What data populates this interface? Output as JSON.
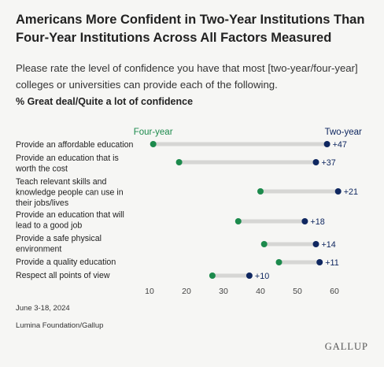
{
  "title": "Americans More Confident in Two-Year Institutions Than Four-Year Institutions Across All Factors Measured",
  "subtitle": "Please rate the level of confidence you have that most [two-year/four-year] colleges or universities can provide each of the following.",
  "measure": "% Great deal/Quite a lot of confidence",
  "footer": {
    "date": "June 3-18, 2024",
    "source": "Lumina Foundation/Gallup",
    "brand": "GALLUP"
  },
  "colors": {
    "four_year": "#1c8a4c",
    "two_year": "#0f2760",
    "connector": "#d6d6d4",
    "diff_text": "#0f2760"
  },
  "chart_data": {
    "type": "dumbbell",
    "xlim": [
      10,
      60
    ],
    "xticks": [
      10,
      20,
      30,
      40,
      50,
      60
    ],
    "series": [
      {
        "name": "Four-year",
        "values": [
          11,
          18,
          40,
          34,
          41,
          45,
          27
        ]
      },
      {
        "name": "Two-year",
        "values": [
          58,
          55,
          61,
          52,
          55,
          56,
          37
        ]
      }
    ],
    "categories": [
      [
        "Provide an affordable education"
      ],
      [
        "Provide an education that is",
        "worth the cost"
      ],
      [
        "Teach relevant skills and",
        "knowledge people can use in",
        "their jobs/lives"
      ],
      [
        "Provide an education that will",
        "lead to a good job"
      ],
      [
        "Provide a safe physical",
        "environment"
      ],
      [
        "Provide a quality education"
      ],
      [
        "Respect all points of view"
      ]
    ],
    "differences": [
      "+47",
      "+37",
      "+21",
      "+18",
      "+14",
      "+11",
      "+10"
    ]
  }
}
